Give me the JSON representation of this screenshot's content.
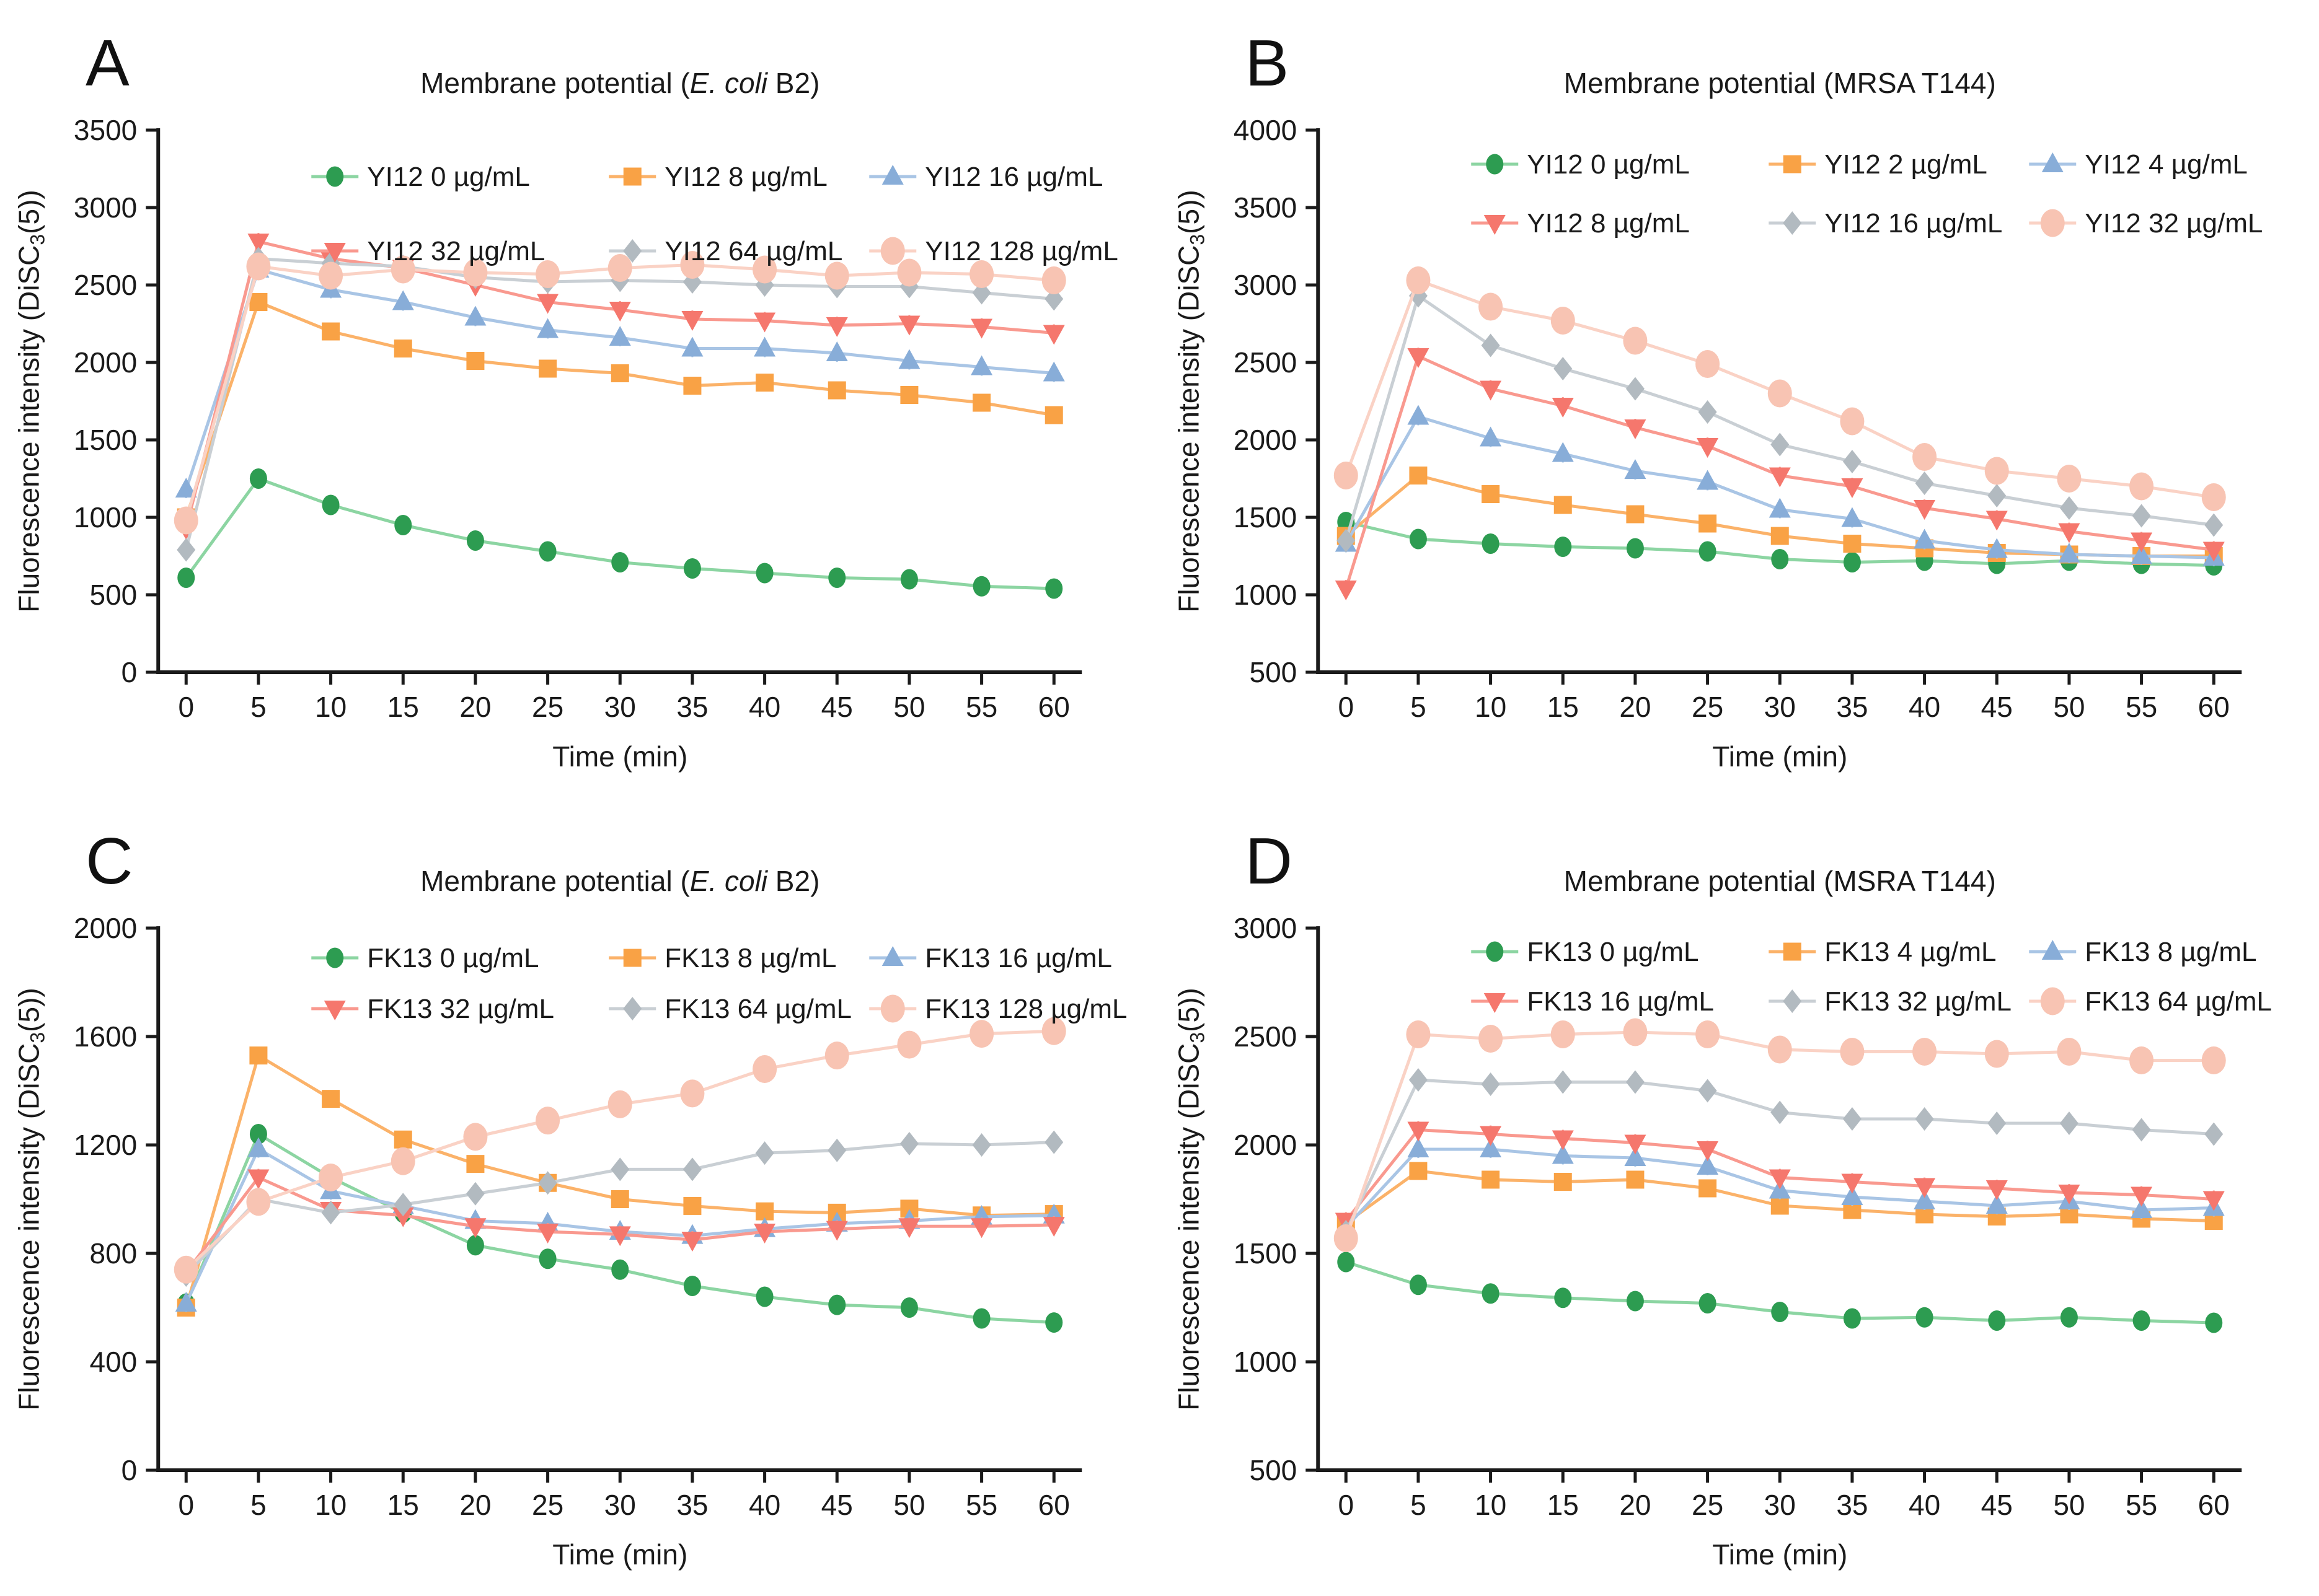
{
  "figure": {
    "background": "#ffffff",
    "axis_color": "#1a1a1a",
    "xlabel": "Time (min)",
    "ylabel_prefix": "Fluorescence intensity (DiSC",
    "ylabel_sub": "3",
    "ylabel_suffix": "(5))"
  },
  "chart_data": [
    {
      "panel_label": "A",
      "type": "line",
      "title_prefix": "Membrane potential (",
      "title_italic": "E. coli",
      "title_suffix": " B2)",
      "xlabel": "Time (min)",
      "ylabel": "Fluorescence intensity (DiSC3(5))",
      "x": [
        0,
        5,
        10,
        15,
        20,
        25,
        30,
        35,
        40,
        45,
        50,
        55,
        60
      ],
      "xticks": [
        0,
        5,
        10,
        15,
        20,
        25,
        30,
        35,
        40,
        45,
        50,
        55,
        60
      ],
      "ylim": [
        0,
        3500
      ],
      "yticks": [
        0,
        500,
        1000,
        1500,
        2000,
        2500,
        3000,
        3500
      ],
      "legend_position": "top-inside",
      "grid": false,
      "legend_row_offsets": [
        75,
        195
      ],
      "series": [
        {
          "name": "YI12  0 µg/mL",
          "marker": "circle",
          "color": "#2D9C51",
          "line_color": "#8CD5A2",
          "values": [
            610,
            1250,
            1080,
            950,
            850,
            780,
            710,
            670,
            640,
            610,
            600,
            555,
            540
          ]
        },
        {
          "name": "YI12  8 µg/mL",
          "marker": "square",
          "color": "#F9A245",
          "line_color": "#FBB269",
          "values": [
            1000,
            2390,
            2200,
            2090,
            2010,
            1960,
            1930,
            1850,
            1870,
            1820,
            1790,
            1740,
            1660
          ]
        },
        {
          "name": "YI12  16 µg/mL",
          "marker": "triangle-up",
          "color": "#88ADD8",
          "line_color": "#A9C5E5",
          "values": [
            1180,
            2600,
            2470,
            2390,
            2290,
            2210,
            2160,
            2090,
            2090,
            2060,
            2010,
            1970,
            1930
          ]
        },
        {
          "name": "YI12  32 µg/mL",
          "marker": "triangle-down",
          "color": "#F5776D",
          "line_color": "#F9998F",
          "values": [
            930,
            2780,
            2670,
            2610,
            2500,
            2390,
            2340,
            2280,
            2270,
            2240,
            2250,
            2230,
            2190
          ]
        },
        {
          "name": "YI12  64 µg/mL",
          "marker": "diamond",
          "color": "#B2BAC0",
          "line_color": "#C9CFD4",
          "values": [
            790,
            2670,
            2640,
            2620,
            2550,
            2520,
            2530,
            2520,
            2500,
            2490,
            2490,
            2450,
            2410
          ]
        },
        {
          "name": "YI12  128 µg/mL",
          "marker": "big-circle",
          "color": "#F8C4B3",
          "line_color": "#FAD2C5",
          "values": [
            980,
            2620,
            2560,
            2600,
            2580,
            2570,
            2610,
            2630,
            2600,
            2560,
            2580,
            2570,
            2530
          ]
        }
      ]
    },
    {
      "panel_label": "B",
      "type": "line",
      "title_prefix": "Membrane potential (MRSA T144)",
      "title_italic": "",
      "title_suffix": "",
      "xlabel": "Time (min)",
      "ylabel": "Fluorescence intensity (DiSC3(5))",
      "x": [
        0,
        5,
        10,
        15,
        20,
        25,
        30,
        35,
        40,
        45,
        50,
        55,
        60
      ],
      "xticks": [
        0,
        5,
        10,
        15,
        20,
        25,
        30,
        35,
        40,
        45,
        50,
        55,
        60
      ],
      "ylim": [
        500,
        4000
      ],
      "yticks": [
        500,
        1000,
        1500,
        2000,
        2500,
        3000,
        3500,
        4000
      ],
      "legend_position": "top-inside",
      "grid": false,
      "legend_row_offsets": [
        55,
        150
      ],
      "series": [
        {
          "name": "YI12  0 µg/mL",
          "marker": "circle",
          "color": "#2D9C51",
          "line_color": "#8CD5A2",
          "values": [
            1470,
            1360,
            1330,
            1310,
            1300,
            1280,
            1230,
            1210,
            1220,
            1200,
            1220,
            1200,
            1190
          ]
        },
        {
          "name": "YI12  2 µg/mL",
          "marker": "square",
          "color": "#F9A245",
          "line_color": "#FBB269",
          "values": [
            1380,
            1770,
            1650,
            1580,
            1520,
            1460,
            1380,
            1330,
            1300,
            1270,
            1260,
            1250,
            1250
          ]
        },
        {
          "name": "YI12  4 µg/mL",
          "marker": "triangle-up",
          "color": "#88ADD8",
          "line_color": "#A9C5E5",
          "values": [
            1330,
            2150,
            2010,
            1910,
            1800,
            1730,
            1550,
            1490,
            1350,
            1290,
            1260,
            1250,
            1240
          ]
        },
        {
          "name": "YI12  8 µg/mL",
          "marker": "triangle-down",
          "color": "#F5776D",
          "line_color": "#F9998F",
          "values": [
            1040,
            2540,
            2330,
            2220,
            2080,
            1960,
            1770,
            1700,
            1560,
            1490,
            1410,
            1350,
            1290
          ]
        },
        {
          "name": "YI12  16 µg/mL",
          "marker": "diamond",
          "color": "#B2BAC0",
          "line_color": "#C9CFD4",
          "values": [
            1350,
            2930,
            2610,
            2460,
            2330,
            2180,
            1970,
            1860,
            1720,
            1640,
            1560,
            1510,
            1450
          ]
        },
        {
          "name": "YI12  32 µg/mL",
          "marker": "big-circle",
          "color": "#F8C4B3",
          "line_color": "#FAD2C5",
          "values": [
            1770,
            3030,
            2860,
            2770,
            2640,
            2490,
            2300,
            2120,
            1890,
            1800,
            1750,
            1700,
            1630
          ]
        }
      ]
    },
    {
      "panel_label": "C",
      "type": "line",
      "title_prefix": "Membrane potential (",
      "title_italic": "E. coli",
      "title_suffix": " B2)",
      "xlabel": "Time (min)",
      "ylabel": "Fluorescence intensity (DiSC3(5))",
      "x": [
        0,
        5,
        10,
        15,
        20,
        25,
        30,
        35,
        40,
        45,
        50,
        55,
        60
      ],
      "xticks": [
        0,
        5,
        10,
        15,
        20,
        25,
        30,
        35,
        40,
        45,
        50,
        55,
        60
      ],
      "ylim": [
        0,
        2000
      ],
      "yticks": [
        0,
        400,
        800,
        1200,
        1600,
        2000
      ],
      "legend_position": "top-inside",
      "grid": false,
      "legend_row_offsets": [
        48,
        130
      ],
      "series": [
        {
          "name": "FK13  0 µg/mL",
          "marker": "circle",
          "color": "#2D9C51",
          "line_color": "#8CD5A2",
          "values": [
            615,
            1240,
            1080,
            950,
            830,
            780,
            740,
            680,
            640,
            610,
            600,
            560,
            545
          ]
        },
        {
          "name": "FK13  8 µg/mL",
          "marker": "square",
          "color": "#F9A245",
          "line_color": "#FBB269",
          "values": [
            600,
            1530,
            1370,
            1220,
            1130,
            1060,
            1000,
            975,
            955,
            950,
            965,
            940,
            945
          ]
        },
        {
          "name": "FK13  16 µg/mL",
          "marker": "triangle-up",
          "color": "#88ADD8",
          "line_color": "#A9C5E5",
          "values": [
            615,
            1185,
            1030,
            975,
            920,
            910,
            880,
            865,
            890,
            910,
            920,
            935,
            940
          ]
        },
        {
          "name": "FK13  32 µg/mL",
          "marker": "triangle-down",
          "color": "#F5776D",
          "line_color": "#F9998F",
          "values": [
            730,
            1080,
            960,
            940,
            900,
            880,
            870,
            850,
            880,
            890,
            900,
            900,
            905
          ]
        },
        {
          "name": "FK13  64 µg/mL",
          "marker": "diamond",
          "color": "#B2BAC0",
          "line_color": "#C9CFD4",
          "values": [
            720,
            1000,
            950,
            980,
            1020,
            1060,
            1110,
            1110,
            1170,
            1180,
            1205,
            1200,
            1210
          ]
        },
        {
          "name": "FK13  128 µg/mL",
          "marker": "big-circle",
          "color": "#F8C4B3",
          "line_color": "#FAD2C5",
          "values": [
            740,
            990,
            1080,
            1140,
            1230,
            1290,
            1350,
            1390,
            1480,
            1530,
            1570,
            1610,
            1620
          ]
        }
      ]
    },
    {
      "panel_label": "D",
      "type": "line",
      "title_prefix": "Membrane potential (MSRA T144)",
      "title_italic": "",
      "title_suffix": "",
      "xlabel": "Time (min)",
      "ylabel": "Fluorescence intensity (DiSC3(5))",
      "x": [
        0,
        5,
        10,
        15,
        20,
        25,
        30,
        35,
        40,
        45,
        50,
        55,
        60
      ],
      "xticks": [
        0,
        5,
        10,
        15,
        20,
        25,
        30,
        35,
        40,
        45,
        50,
        55,
        60
      ],
      "ylim": [
        500,
        3000
      ],
      "yticks": [
        500,
        1000,
        1500,
        2000,
        2500,
        3000
      ],
      "legend_position": "top-inside",
      "grid": false,
      "legend_row_offsets": [
        38,
        118
      ],
      "series": [
        {
          "name": "FK13  0 µg/mL",
          "marker": "circle",
          "color": "#2D9C51",
          "line_color": "#8CD5A2",
          "values": [
            1460,
            1355,
            1315,
            1295,
            1280,
            1270,
            1230,
            1200,
            1205,
            1190,
            1205,
            1190,
            1180
          ]
        },
        {
          "name": "FK13  4 µg/mL",
          "marker": "square",
          "color": "#F9A245",
          "line_color": "#FBB269",
          "values": [
            1640,
            1880,
            1840,
            1830,
            1840,
            1800,
            1720,
            1700,
            1680,
            1670,
            1680,
            1660,
            1650
          ]
        },
        {
          "name": "FK13  8 µg/mL",
          "marker": "triangle-up",
          "color": "#88ADD8",
          "line_color": "#A9C5E5",
          "values": [
            1620,
            1980,
            1980,
            1950,
            1940,
            1900,
            1790,
            1760,
            1740,
            1720,
            1740,
            1700,
            1710
          ]
        },
        {
          "name": "FK13  16 µg/mL",
          "marker": "triangle-down",
          "color": "#F5776D",
          "line_color": "#F9998F",
          "values": [
            1650,
            2070,
            2050,
            2030,
            2010,
            1980,
            1850,
            1830,
            1810,
            1800,
            1780,
            1770,
            1750
          ]
        },
        {
          "name": "FK13  32 µg/mL",
          "marker": "diamond",
          "color": "#B2BAC0",
          "line_color": "#C9CFD4",
          "values": [
            1600,
            2300,
            2280,
            2290,
            2290,
            2250,
            2150,
            2120,
            2120,
            2100,
            2100,
            2070,
            2050
          ]
        },
        {
          "name": "FK13  64 µg/mL",
          "marker": "big-circle",
          "color": "#F8C4B3",
          "line_color": "#FAD2C5",
          "values": [
            1570,
            2510,
            2490,
            2510,
            2520,
            2510,
            2440,
            2430,
            2430,
            2420,
            2430,
            2390,
            2390
          ]
        }
      ]
    }
  ]
}
